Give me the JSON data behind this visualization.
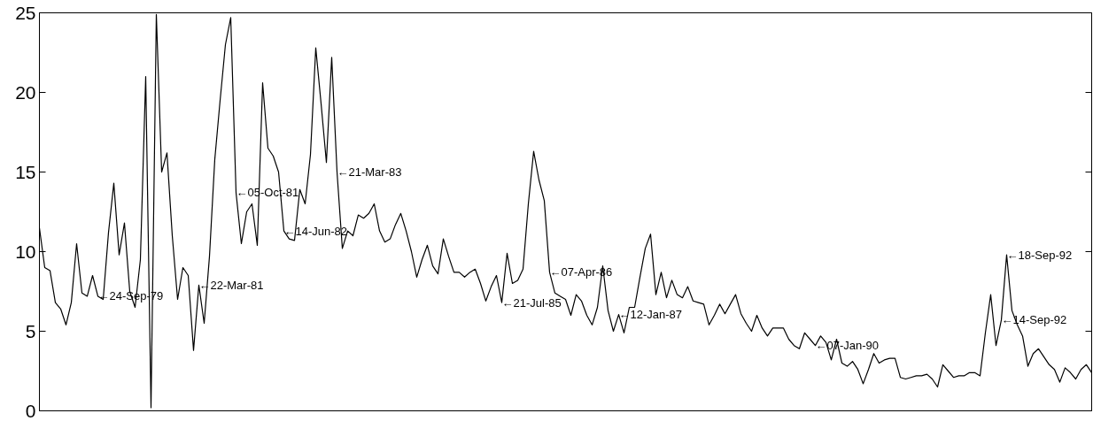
{
  "chart_data": {
    "type": "line",
    "categories": [
      null,
      null,
      null,
      null,
      null,
      null,
      null,
      null,
      null,
      null,
      null,
      null,
      null,
      null,
      null,
      null,
      null,
      null,
      null,
      null,
      null,
      null,
      null,
      null,
      null,
      null,
      null,
      null,
      null,
      null,
      null,
      null,
      null,
      null,
      null,
      null,
      null,
      null,
      null,
      null,
      null,
      null,
      null,
      null,
      null,
      null,
      null,
      null,
      null,
      null,
      null,
      null,
      null,
      null,
      null,
      null,
      null,
      null,
      null,
      null,
      null,
      null,
      null,
      null,
      null,
      null,
      null,
      null,
      null,
      null,
      null,
      null,
      null,
      null,
      null,
      null,
      null,
      null,
      null,
      null,
      null,
      null,
      null,
      null,
      null,
      null,
      null,
      null,
      null,
      null,
      null,
      null,
      null,
      null,
      null,
      null,
      null,
      null,
      null,
      null,
      null,
      null,
      null,
      null,
      null,
      null,
      null,
      null,
      null,
      null,
      null,
      null,
      null,
      null,
      null,
      null,
      null,
      null,
      null,
      null,
      null,
      null,
      null,
      null,
      null,
      null,
      null,
      null,
      null,
      null,
      null,
      null,
      null,
      null,
      null,
      null,
      null,
      null,
      null,
      null,
      null,
      null,
      null,
      null,
      null,
      null,
      null,
      null,
      null,
      null,
      null,
      null,
      null,
      null,
      null,
      null,
      null,
      null,
      null,
      null,
      null,
      null,
      null,
      null,
      null,
      null,
      null,
      null,
      null,
      null,
      null,
      null,
      null,
      null,
      null,
      null,
      null,
      null,
      null,
      null,
      null,
      null,
      null,
      null,
      null,
      null,
      null,
      null,
      null,
      null,
      null,
      null,
      null,
      null,
      null,
      null,
      null,
      null,
      null
    ],
    "ylim": [
      0,
      25
    ],
    "yticks": [
      0,
      5,
      10,
      15,
      20,
      25
    ],
    "series": [
      {
        "color": "#000000",
        "values": [
          11.5,
          9.0,
          8.8,
          6.8,
          6.4,
          5.4,
          6.8,
          10.5,
          7.4,
          7.2,
          8.5,
          7.2,
          7.0,
          11.2,
          14.3,
          9.8,
          11.8,
          7.5,
          6.5,
          9.5,
          21.0,
          0.2,
          24.9,
          15.0,
          16.2,
          11.0,
          7.0,
          9.0,
          8.5,
          3.8,
          7.9,
          5.5,
          9.7,
          15.8,
          19.5,
          23.0,
          24.7,
          13.7,
          10.5,
          12.5,
          13.0,
          10.4,
          20.6,
          16.5,
          16.0,
          15.0,
          11.3,
          10.8,
          10.7,
          13.9,
          13.0,
          16.1,
          22.8,
          19.3,
          15.6,
          22.2,
          15.0,
          10.2,
          11.3,
          11.0,
          12.3,
          12.1,
          12.4,
          13.0,
          11.3,
          10.6,
          10.8,
          11.7,
          12.4,
          11.3,
          10.0,
          8.4,
          9.5,
          10.4,
          9.1,
          8.6,
          10.8,
          9.7,
          8.7,
          8.7,
          8.4,
          8.7,
          8.9,
          8.0,
          6.9,
          7.8,
          8.5,
          6.8,
          9.9,
          8.0,
          8.2,
          8.9,
          13.0,
          16.3,
          14.5,
          13.2,
          8.7,
          7.4,
          7.2,
          7.0,
          6.0,
          7.3,
          6.9,
          6.0,
          5.4,
          6.5,
          9.1,
          6.3,
          5.0,
          6.05,
          4.9,
          6.5,
          6.5,
          8.4,
          10.2,
          11.1,
          7.3,
          8.7,
          7.1,
          8.2,
          7.3,
          7.1,
          7.8,
          6.9,
          6.8,
          6.7,
          5.4,
          6.0,
          6.7,
          6.1,
          6.7,
          7.3,
          6.1,
          5.5,
          5.0,
          6.0,
          5.2,
          4.7,
          5.2,
          5.2,
          5.2,
          4.5,
          4.1,
          3.9,
          4.9,
          4.5,
          4.1,
          4.7,
          4.3,
          3.2,
          4.5,
          3.0,
          2.8,
          3.1,
          2.6,
          1.7,
          2.6,
          3.6,
          3.0,
          3.2,
          3.3,
          3.3,
          2.1,
          2.0,
          2.1,
          2.2,
          2.2,
          2.3,
          2.0,
          1.5,
          2.9,
          2.5,
          2.1,
          2.2,
          2.2,
          2.4,
          2.4,
          2.2,
          4.9,
          7.3,
          4.1,
          5.7,
          9.8,
          6.3,
          5.4,
          4.7,
          2.8,
          3.6,
          3.9,
          3.4,
          2.9,
          2.6,
          1.8,
          2.7,
          2.4,
          2.0,
          2.6,
          2.9,
          2.4
        ],
        "value_labels": [
          null,
          null,
          null,
          null,
          null,
          null,
          null,
          null,
          null,
          null,
          null,
          "←24-Sep-79",
          null,
          null,
          null,
          null,
          null,
          null,
          null,
          null,
          null,
          null,
          null,
          null,
          null,
          null,
          null,
          null,
          null,
          null,
          "←22-Mar-81",
          null,
          null,
          null,
          null,
          null,
          null,
          "←05-Oct-81",
          null,
          null,
          null,
          null,
          null,
          null,
          null,
          null,
          "←14-Jun-82",
          null,
          null,
          null,
          null,
          null,
          null,
          null,
          null,
          null,
          "←21-Mar-83",
          null,
          null,
          null,
          null,
          null,
          null,
          null,
          null,
          null,
          null,
          null,
          null,
          null,
          null,
          null,
          null,
          null,
          null,
          null,
          null,
          null,
          null,
          null,
          null,
          null,
          null,
          null,
          null,
          null,
          null,
          "←21-Jul-85",
          null,
          null,
          null,
          null,
          null,
          null,
          null,
          null,
          "←07-Apr-86",
          null,
          null,
          null,
          null,
          null,
          null,
          null,
          null,
          null,
          null,
          null,
          null,
          "←12-Jan-87",
          null,
          null,
          null,
          null,
          null,
          null,
          null,
          null,
          null,
          null,
          null,
          null,
          null,
          null,
          null,
          null,
          null,
          null,
          null,
          null,
          null,
          null,
          null,
          null,
          null,
          null,
          null,
          null,
          null,
          null,
          null,
          null,
          null,
          null,
          null,
          null,
          "←07-Jan-90",
          null,
          null,
          null,
          null,
          null,
          null,
          null,
          null,
          null,
          null,
          null,
          null,
          null,
          null,
          null,
          null,
          null,
          null,
          null,
          null,
          null,
          null,
          null,
          null,
          null,
          null,
          null,
          null,
          null,
          null,
          null,
          null,
          null,
          null,
          "←14-Sep-92",
          "←18-Sep-92",
          null,
          null,
          null,
          null,
          null,
          null,
          null,
          null,
          null,
          null,
          null,
          null,
          null,
          null,
          null,
          null
        ]
      }
    ]
  }
}
